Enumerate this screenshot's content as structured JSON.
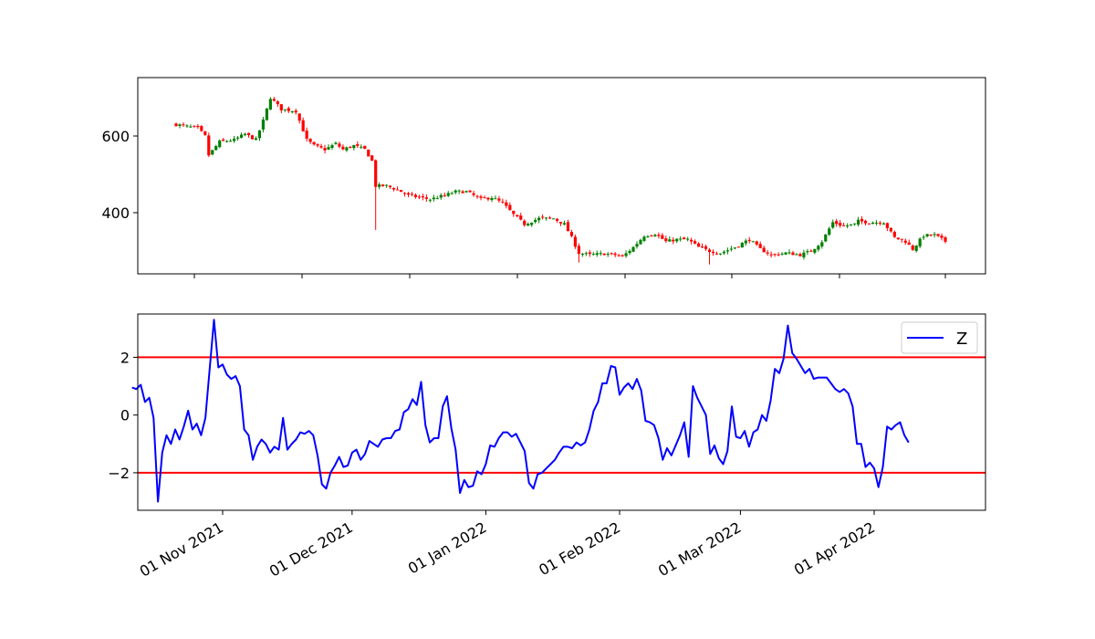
{
  "chart_data": [
    {
      "type": "candlestick",
      "title": "",
      "xlabel": "",
      "ylabel": "",
      "x_range": [
        "2021-10-16",
        "2022-04-22"
      ],
      "ylim": [
        250,
        750
      ],
      "yticks": [
        400,
        600
      ],
      "up_color": "#008000",
      "down_color": "#ff0000",
      "grid": false,
      "close_anchors": [
        [
          "2021-10-19",
          630
        ],
        [
          "2021-10-22",
          625
        ],
        [
          "2021-10-25",
          620
        ],
        [
          "2021-10-27",
          600
        ],
        [
          "2021-10-28",
          550
        ],
        [
          "2021-10-31",
          585
        ],
        [
          "2021-11-04",
          590
        ],
        [
          "2021-11-07",
          605
        ],
        [
          "2021-11-10",
          590
        ],
        [
          "2021-11-12",
          640
        ],
        [
          "2021-11-14",
          700
        ],
        [
          "2021-11-17",
          670
        ],
        [
          "2021-11-21",
          665
        ],
        [
          "2021-11-24",
          590
        ],
        [
          "2021-11-26",
          575
        ],
        [
          "2021-11-29",
          565
        ],
        [
          "2021-12-02",
          580
        ],
        [
          "2021-12-04",
          565
        ],
        [
          "2021-12-07",
          575
        ],
        [
          "2021-12-10",
          565
        ],
        [
          "2021-12-12",
          535
        ],
        [
          "2021-12-13",
          470
        ],
        [
          "2021-12-16",
          470
        ],
        [
          "2021-12-19",
          460
        ],
        [
          "2021-12-22",
          445
        ],
        [
          "2021-12-25",
          440
        ],
        [
          "2021-12-28",
          435
        ],
        [
          "2022-01-01",
          445
        ],
        [
          "2022-01-04",
          455
        ],
        [
          "2022-01-07",
          455
        ],
        [
          "2022-01-11",
          435
        ],
        [
          "2022-01-14",
          440
        ],
        [
          "2022-01-17",
          425
        ],
        [
          "2022-01-20",
          395
        ],
        [
          "2022-01-23",
          370
        ],
        [
          "2022-01-27",
          385
        ],
        [
          "2022-01-31",
          385
        ],
        [
          "2022-02-03",
          370
        ],
        [
          "2022-02-05",
          335
        ],
        [
          "2022-02-07",
          295
        ],
        [
          "2022-02-10",
          290
        ],
        [
          "2022-02-14",
          293
        ],
        [
          "2022-02-17",
          290
        ],
        [
          "2022-02-19",
          285
        ],
        [
          "2022-02-22",
          310
        ],
        [
          "2022-02-25",
          340
        ],
        [
          "2022-02-28",
          345
        ],
        [
          "2022-03-03",
          325
        ],
        [
          "2022-03-06",
          330
        ],
        [
          "2022-03-09",
          330
        ],
        [
          "2022-03-12",
          310
        ],
        [
          "2022-03-15",
          300
        ],
        [
          "2022-03-18",
          295
        ],
        [
          "2022-03-22",
          310
        ],
        [
          "2022-03-26",
          330
        ],
        [
          "2022-03-29",
          305
        ],
        [
          "2022-04-01",
          290
        ],
        [
          "2022-04-05",
          295
        ],
        [
          "2022-04-09",
          290
        ],
        [
          "2022-04-12",
          300
        ],
        [
          "2022-04-15",
          325
        ],
        [
          "2022-04-18",
          375
        ],
        [
          "2022-04-21",
          365
        ],
        [
          "2022-04-24",
          370
        ]
      ],
      "note_range": [
        [
          "2022-04-25",
          378
        ],
        [
          "2022-04-28",
          375
        ],
        [
          "2022-05-02",
          375
        ],
        [
          "2022-05-05",
          335
        ],
        [
          "2022-05-08",
          325
        ],
        [
          "2022-05-10",
          305
        ],
        [
          "2022-05-13",
          340
        ],
        [
          "2022-05-16",
          342
        ],
        [
          "2022-05-19",
          325
        ]
      ]
    },
    {
      "type": "line",
      "title": "",
      "xlabel": "",
      "ylabel": "",
      "xticks": [
        "01 Nov 2021",
        "01 Dec 2021",
        "01 Jan 2022",
        "01 Feb 2022",
        "01 Mar 2022",
        "01 Apr 2022"
      ],
      "xtick_dates": [
        "2021-11-01",
        "2021-12-01",
        "2022-01-01",
        "2022-02-01",
        "2022-03-01",
        "2022-04-01"
      ],
      "ylim": [
        -3.3,
        3.5
      ],
      "yticks": [
        -2,
        0,
        2
      ],
      "hlines": [
        {
          "y": 2,
          "color": "#ff0000"
        },
        {
          "y": -2,
          "color": "#ff0000"
        }
      ],
      "legend": {
        "position": "top-right"
      },
      "series": [
        {
          "name": "Z",
          "color": "#0000ff",
          "points": [
            [
              "2021-10-11",
              0.95
            ],
            [
              "2021-10-12",
              0.9
            ],
            [
              "2021-10-13",
              1.05
            ],
            [
              "2021-10-14",
              0.45
            ],
            [
              "2021-10-15",
              0.6
            ],
            [
              "2021-10-16",
              -0.1
            ],
            [
              "2021-10-17",
              -3.0
            ],
            [
              "2021-10-18",
              -1.3
            ],
            [
              "2021-10-19",
              -0.7
            ],
            [
              "2021-10-20",
              -1.0
            ],
            [
              "2021-10-21",
              -0.5
            ],
            [
              "2021-10-22",
              -0.85
            ],
            [
              "2021-10-23",
              -0.4
            ],
            [
              "2021-10-24",
              0.15
            ],
            [
              "2021-10-25",
              -0.5
            ],
            [
              "2021-10-26",
              -0.3
            ],
            [
              "2021-10-27",
              -0.7
            ],
            [
              "2021-10-28",
              -0.1
            ],
            [
              "2021-10-29",
              1.6
            ],
            [
              "2021-10-30",
              3.3
            ],
            [
              "2021-10-31",
              1.65
            ],
            [
              "2021-11-01",
              1.75
            ],
            [
              "2021-11-02",
              1.4
            ],
            [
              "2021-11-03",
              1.25
            ],
            [
              "2021-11-04",
              1.35
            ],
            [
              "2021-11-05",
              1.0
            ],
            [
              "2021-11-06",
              -0.5
            ],
            [
              "2021-11-07",
              -0.7
            ],
            [
              "2021-11-08",
              -1.55
            ],
            [
              "2021-11-09",
              -1.1
            ],
            [
              "2021-11-10",
              -0.85
            ],
            [
              "2021-11-11",
              -1.0
            ],
            [
              "2021-11-12",
              -1.3
            ],
            [
              "2021-11-13",
              -1.1
            ],
            [
              "2021-11-14",
              -1.2
            ],
            [
              "2021-11-15",
              -0.1
            ],
            [
              "2021-11-16",
              -1.2
            ],
            [
              "2021-11-17",
              -1.0
            ],
            [
              "2021-11-18",
              -0.85
            ],
            [
              "2021-11-19",
              -0.6
            ],
            [
              "2021-11-20",
              -0.65
            ],
            [
              "2021-11-21",
              -0.55
            ],
            [
              "2021-11-22",
              -0.7
            ],
            [
              "2021-11-23",
              -1.4
            ],
            [
              "2021-11-24",
              -2.4
            ],
            [
              "2021-11-25",
              -2.55
            ],
            [
              "2021-11-26",
              -2.0
            ],
            [
              "2021-11-27",
              -1.75
            ],
            [
              "2021-11-28",
              -1.45
            ],
            [
              "2021-11-29",
              -1.8
            ],
            [
              "2021-11-30",
              -1.75
            ],
            [
              "2021-12-01",
              -1.3
            ],
            [
              "2021-12-02",
              -1.2
            ],
            [
              "2021-12-03",
              -1.55
            ],
            [
              "2021-12-04",
              -1.35
            ],
            [
              "2021-12-05",
              -0.9
            ],
            [
              "2021-12-06",
              -1.0
            ],
            [
              "2021-12-07",
              -1.1
            ],
            [
              "2021-12-08",
              -0.85
            ],
            [
              "2021-12-09",
              -0.8
            ],
            [
              "2021-12-10",
              -0.8
            ],
            [
              "2021-12-11",
              -0.55
            ],
            [
              "2021-12-12",
              -0.5
            ],
            [
              "2021-12-13",
              0.1
            ],
            [
              "2021-12-14",
              0.2
            ],
            [
              "2021-12-15",
              0.55
            ],
            [
              "2021-12-16",
              0.35
            ],
            [
              "2021-12-17",
              1.15
            ],
            [
              "2021-12-18",
              -0.35
            ],
            [
              "2021-12-19",
              -0.95
            ],
            [
              "2021-12-20",
              -0.8
            ],
            [
              "2021-12-21",
              -0.8
            ],
            [
              "2021-12-22",
              0.3
            ],
            [
              "2021-12-23",
              0.65
            ],
            [
              "2021-12-24",
              -0.45
            ],
            [
              "2021-12-25",
              -1.2
            ],
            [
              "2021-12-26",
              -2.7
            ],
            [
              "2021-12-27",
              -2.25
            ],
            [
              "2021-12-28",
              -2.5
            ],
            [
              "2021-12-29",
              -2.45
            ],
            [
              "2021-12-30",
              -1.95
            ],
            [
              "2021-12-31",
              -2.05
            ],
            [
              "2022-01-01",
              -1.7
            ],
            [
              "2022-01-02",
              -1.05
            ],
            [
              "2022-01-03",
              -1.1
            ],
            [
              "2022-01-04",
              -0.8
            ],
            [
              "2022-01-05",
              -0.6
            ],
            [
              "2022-01-06",
              -0.6
            ],
            [
              "2022-01-07",
              -0.75
            ],
            [
              "2022-01-08",
              -0.65
            ],
            [
              "2022-01-09",
              -0.95
            ],
            [
              "2022-01-10",
              -1.25
            ],
            [
              "2022-01-11",
              -2.35
            ],
            [
              "2022-01-12",
              -2.55
            ],
            [
              "2022-01-13",
              -2.05
            ],
            [
              "2022-01-14",
              -2.0
            ],
            [
              "2022-01-15",
              -1.85
            ],
            [
              "2022-01-16",
              -1.7
            ],
            [
              "2022-01-17",
              -1.55
            ],
            [
              "2022-01-18",
              -1.3
            ],
            [
              "2022-01-19",
              -1.1
            ],
            [
              "2022-01-20",
              -1.1
            ],
            [
              "2022-01-21",
              -1.15
            ],
            [
              "2022-01-22",
              -0.95
            ],
            [
              "2022-01-23",
              -1.05
            ],
            [
              "2022-01-24",
              -0.95
            ],
            [
              "2022-01-25",
              -0.5
            ],
            [
              "2022-01-26",
              0.15
            ],
            [
              "2022-01-27",
              0.45
            ],
            [
              "2022-01-28",
              1.1
            ],
            [
              "2022-01-29",
              1.1
            ],
            [
              "2022-01-30",
              1.7
            ],
            [
              "2022-01-31",
              1.65
            ],
            [
              "2022-02-01",
              0.7
            ],
            [
              "2022-02-02",
              0.95
            ],
            [
              "2022-02-03",
              1.1
            ],
            [
              "2022-02-04",
              0.9
            ],
            [
              "2022-02-05",
              1.25
            ],
            [
              "2022-02-06",
              0.85
            ],
            [
              "2022-02-07",
              -0.2
            ],
            [
              "2022-02-08",
              -0.25
            ],
            [
              "2022-02-09",
              -0.35
            ],
            [
              "2022-02-10",
              -0.8
            ],
            [
              "2022-02-11",
              -1.55
            ],
            [
              "2022-02-12",
              -1.15
            ],
            [
              "2022-02-13",
              -1.4
            ],
            [
              "2022-02-14",
              -1.05
            ],
            [
              "2022-02-15",
              -0.7
            ],
            [
              "2022-02-16",
              -0.25
            ],
            [
              "2022-02-17",
              -1.45
            ],
            [
              "2022-02-18",
              1.0
            ],
            [
              "2022-02-19",
              0.6
            ],
            [
              "2022-02-20",
              0.3
            ],
            [
              "2022-02-21",
              0.0
            ],
            [
              "2022-02-22",
              -1.35
            ],
            [
              "2022-02-23",
              -1.05
            ],
            [
              "2022-02-24",
              -1.5
            ],
            [
              "2022-02-25",
              -1.7
            ],
            [
              "2022-02-26",
              -1.25
            ],
            [
              "2022-02-27",
              0.3
            ],
            [
              "2022-02-28",
              -0.75
            ],
            [
              "2022-03-01",
              -0.8
            ],
            [
              "2022-03-02",
              -0.55
            ],
            [
              "2022-03-03",
              -1.1
            ],
            [
              "2022-03-04",
              -0.6
            ],
            [
              "2022-03-05",
              -0.5
            ],
            [
              "2022-03-06",
              0.0
            ],
            [
              "2022-03-07",
              -0.2
            ],
            [
              "2022-03-08",
              0.5
            ],
            [
              "2022-03-09",
              1.6
            ],
            [
              "2022-03-10",
              1.45
            ],
            [
              "2022-03-11",
              1.95
            ],
            [
              "2022-03-12",
              3.1
            ],
            [
              "2022-03-13",
              2.15
            ],
            [
              "2022-03-14",
              1.95
            ],
            [
              "2022-03-15",
              1.7
            ],
            [
              "2022-03-16",
              1.45
            ],
            [
              "2022-03-17",
              1.6
            ],
            [
              "2022-03-18",
              1.25
            ],
            [
              "2022-03-19",
              1.3
            ],
            [
              "2022-03-20",
              1.3
            ],
            [
              "2022-03-21",
              1.3
            ],
            [
              "2022-03-22",
              1.1
            ],
            [
              "2022-03-23",
              0.9
            ],
            [
              "2022-03-24",
              0.8
            ],
            [
              "2022-03-25",
              0.9
            ],
            [
              "2022-03-26",
              0.75
            ],
            [
              "2022-03-27",
              0.3
            ],
            [
              "2022-03-28",
              -1.0
            ],
            [
              "2022-03-29",
              -1.0
            ],
            [
              "2022-03-30",
              -1.8
            ],
            [
              "2022-03-31",
              -1.65
            ],
            [
              "2022-04-01",
              -1.85
            ],
            [
              "2022-04-02",
              -2.5
            ],
            [
              "2022-04-03",
              -1.8
            ],
            [
              "2022-04-04",
              -0.4
            ],
            [
              "2022-04-05",
              -0.5
            ],
            [
              "2022-04-06",
              -0.35
            ],
            [
              "2022-04-07",
              -0.25
            ],
            [
              "2022-04-08",
              -0.7
            ],
            [
              "2022-04-09",
              -0.95
            ]
          ]
        }
      ]
    }
  ]
}
